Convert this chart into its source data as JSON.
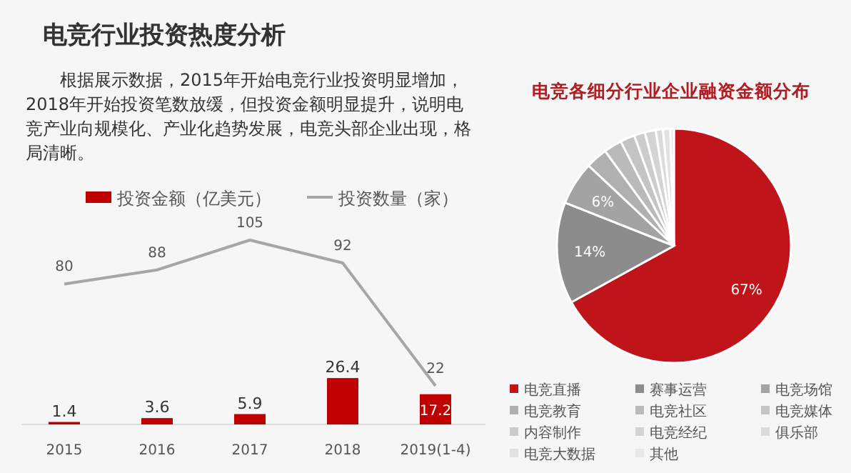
{
  "chart_data": [
    {
      "type": "bar",
      "title": "电竞行业投资热度分析",
      "annotations": [
        "根据展示数据，2015年开始电竞行业投资明显增加，2018年开始投资笔数放缓，但投资金额明显提升，说明电竞产业向规模化、产业化趋势发展，电竞头部企业出现，格局清晰。"
      ],
      "categories": [
        "2015",
        "2016",
        "2017",
        "2018",
        "2019(1-4)"
      ],
      "series": [
        {
          "name": "投资金额（亿美元）",
          "color": "#c00000",
          "values": [
            1.4,
            3.6,
            5.9,
            26.4,
            17.2
          ]
        },
        {
          "name": "投资数量（家）",
          "type": "line",
          "color": "#a6a6a6",
          "values": [
            80,
            88,
            105,
            92,
            22
          ]
        }
      ],
      "data_labels": true,
      "legend": "top"
    },
    {
      "type": "pie",
      "title": "电竞各细分行业企业融资金额分布",
      "categories": [
        "电竞直播",
        "赛事运营",
        "电竞场馆",
        "电竞教育",
        "电竞社区",
        "电竞媒体",
        "内容制作",
        "电竞经纪",
        "俱乐部",
        "电竞大数据",
        "其他"
      ],
      "values": [
        67,
        14,
        6,
        3,
        2.5,
        2,
        1.5,
        1.5,
        1,
        1,
        0.5
      ],
      "colors": [
        "#c0141b",
        "#8c8c8c",
        "#a3a3a3",
        "#b0b0b0",
        "#bababa",
        "#c4c4c4",
        "#cccccc",
        "#d4d4d4",
        "#dbdbdb",
        "#e2e2e2",
        "#e8e8e8"
      ],
      "value_labels": [
        "67%",
        "14%",
        "6%",
        null,
        null,
        null,
        null,
        null,
        null,
        null,
        null
      ],
      "legend": "bottom"
    }
  ]
}
